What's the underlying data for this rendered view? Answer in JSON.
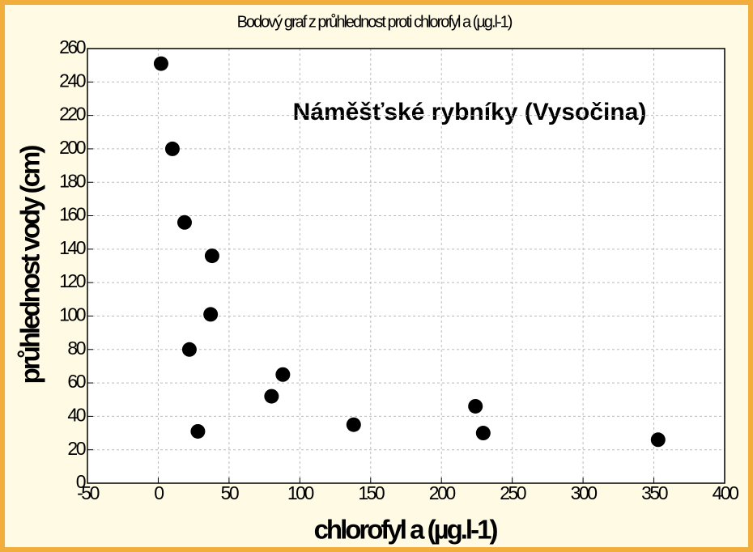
{
  "chart_data": {
    "type": "scatter",
    "title": "Bodový graf z průhlednost proti chlorofyl a (µg.l-1)",
    "annotation": "Náměšťské rybníky (Vysočina)",
    "xlabel": "chlorofyl a (µg.l-1)",
    "ylabel": "průhlednost vody (cm)",
    "color": "#000000",
    "grid": true,
    "x": [
      2,
      10,
      18.6,
      38,
      37,
      22,
      88,
      80,
      28,
      138,
      224,
      229.5,
      353
    ],
    "values": [
      251,
      200,
      156,
      136,
      101,
      80,
      65,
      52,
      31,
      35,
      46,
      30,
      26
    ],
    "xlim": [
      -50,
      400
    ],
    "xticks": [
      -50,
      0,
      50,
      100,
      150,
      200,
      250,
      300,
      350,
      400
    ],
    "ylim": [
      0,
      260
    ],
    "yticks": [
      0,
      20,
      40,
      60,
      80,
      100,
      120,
      140,
      160,
      180,
      200,
      220,
      240,
      260
    ]
  }
}
